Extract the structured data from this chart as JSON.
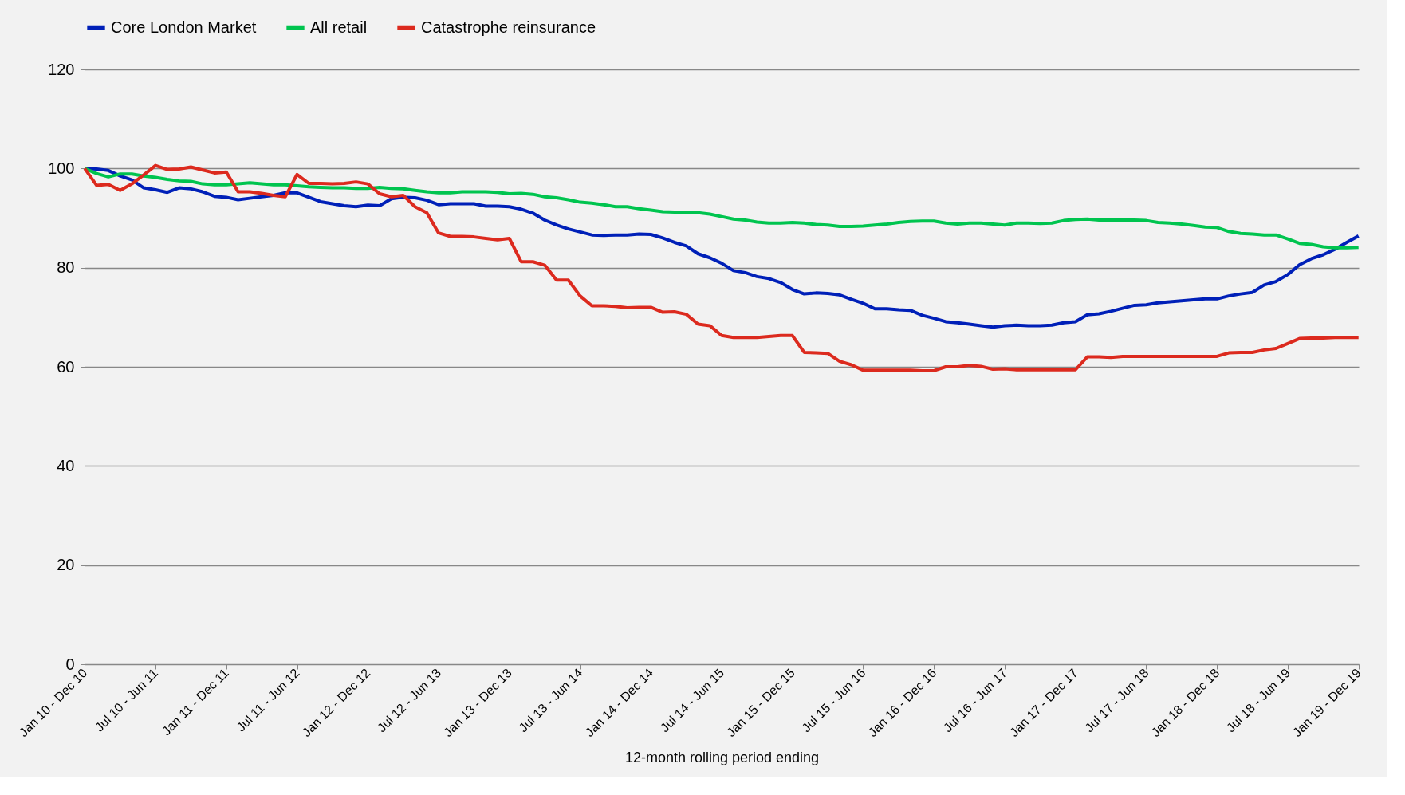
{
  "chart_data": {
    "type": "line",
    "categories": [
      "Jan 10 - Dec 10",
      null,
      null,
      null,
      null,
      null,
      "Jul 10 - Jun 11",
      null,
      null,
      null,
      null,
      null,
      "Jan 11 - Dec 11",
      null,
      null,
      null,
      null,
      null,
      "Jul 11 - Jun 12",
      null,
      null,
      null,
      null,
      null,
      "Jan 12 - Dec 12",
      null,
      null,
      null,
      null,
      null,
      "Jul 12 - Jun 13",
      null,
      null,
      null,
      null,
      null,
      "Jan 13 - Dec 13",
      null,
      null,
      null,
      null,
      null,
      "Jul 13 - Jun 14",
      null,
      null,
      null,
      null,
      null,
      "Jan 14 - Dec 14",
      null,
      null,
      null,
      null,
      null,
      "Jul 14 - Jun 15",
      null,
      null,
      null,
      null,
      null,
      "Jan 15 - Dec 15",
      null,
      null,
      null,
      null,
      null,
      "Jul 15 - Jun 16",
      null,
      null,
      null,
      null,
      null,
      "Jan 16 - Dec 16",
      null,
      null,
      null,
      null,
      null,
      "Jul 16 - Jun 17",
      null,
      null,
      null,
      null,
      null,
      "Jan 17 - Dec 17",
      null,
      null,
      null,
      null,
      null,
      "Jul 17 - Jun 18",
      null,
      null,
      null,
      null,
      null,
      "Jan 18 - Dec 18",
      null,
      null,
      null,
      null,
      null,
      "Jul 18 - Jun 19",
      null,
      null,
      null,
      null,
      null,
      "Jan 19 - Dec 19"
    ],
    "xlabel": "12-month rolling period ending",
    "series": [
      {
        "name": "Core London Market",
        "color": "#0020b8",
        "values": [
          100,
          99.9,
          99.6,
          98.5,
          97.7,
          96.1,
          95.7,
          95.2,
          96.1,
          95.9,
          95.3,
          94.4,
          94.2,
          93.7,
          94.0,
          94.3,
          94.6,
          95.1,
          95.1,
          94.2,
          93.3,
          92.9,
          92.5,
          92.3,
          92.6,
          92.5,
          93.9,
          94.2,
          94.1,
          93.6,
          92.7,
          92.9,
          92.9,
          92.9,
          92.4,
          92.4,
          92.3,
          91.8,
          91.0,
          89.6,
          88.6,
          87.8,
          87.2,
          86.6,
          86.5,
          86.6,
          86.6,
          86.8,
          86.7,
          86.0,
          85.1,
          84.4,
          82.8,
          82.0,
          80.9,
          79.4,
          79.0,
          78.2,
          77.8,
          77.0,
          75.6,
          74.7,
          74.9,
          74.8,
          74.5,
          73.6,
          72.8,
          71.7,
          71.7,
          71.5,
          71.4,
          70.4,
          69.8,
          69.1,
          68.9,
          68.6,
          68.3,
          68.0,
          68.3,
          68.4,
          68.3,
          68.3,
          68.4,
          68.9,
          69.1,
          70.5,
          70.7,
          71.2,
          71.8,
          72.4,
          72.5,
          72.9,
          73.1,
          73.3,
          73.5,
          73.7,
          73.7,
          74.3,
          74.7,
          75.0,
          76.5,
          77.2,
          78.6,
          80.6,
          81.8,
          82.6,
          83.7,
          85.1,
          86.4
        ]
      },
      {
        "name": "All retail",
        "color": "#00c44f",
        "values": [
          100,
          99.0,
          98.3,
          98.9,
          98.9,
          98.5,
          98.2,
          97.8,
          97.5,
          97.4,
          96.9,
          96.7,
          96.7,
          96.9,
          97.1,
          96.9,
          96.7,
          96.7,
          96.5,
          96.3,
          96.2,
          96.1,
          96.1,
          96.0,
          96.0,
          96.2,
          96.0,
          95.9,
          95.6,
          95.3,
          95.1,
          95.1,
          95.3,
          95.3,
          95.3,
          95.2,
          94.9,
          95.0,
          94.8,
          94.3,
          94.1,
          93.7,
          93.2,
          93.0,
          92.7,
          92.3,
          92.3,
          91.9,
          91.6,
          91.3,
          91.2,
          91.2,
          91.1,
          90.8,
          90.3,
          89.8,
          89.6,
          89.2,
          89.0,
          89.0,
          89.1,
          89.0,
          88.7,
          88.6,
          88.3,
          88.3,
          88.4,
          88.6,
          88.8,
          89.1,
          89.3,
          89.4,
          89.4,
          89.0,
          88.8,
          89.0,
          89.0,
          88.8,
          88.6,
          89.0,
          89.0,
          88.9,
          89.0,
          89.5,
          89.7,
          89.8,
          89.6,
          89.6,
          89.6,
          89.6,
          89.5,
          89.1,
          89.0,
          88.8,
          88.5,
          88.2,
          88.1,
          87.3,
          86.9,
          86.8,
          86.6,
          86.6,
          85.8,
          84.9,
          84.7,
          84.2,
          84.0,
          84.0,
          84.1
        ]
      },
      {
        "name": "Catastrophe reinsurance",
        "color": "#dc2a1e",
        "values": [
          100,
          96.6,
          96.8,
          95.6,
          96.9,
          98.7,
          100.6,
          99.8,
          99.9,
          100.3,
          99.7,
          99.1,
          99.3,
          95.3,
          95.3,
          95.0,
          94.6,
          94.3,
          98.8,
          97.0,
          97.0,
          96.9,
          97.0,
          97.3,
          96.9,
          94.9,
          94.3,
          94.6,
          92.3,
          91.1,
          87.0,
          86.3,
          86.3,
          86.2,
          85.9,
          85.6,
          85.9,
          81.2,
          81.2,
          80.5,
          77.5,
          77.5,
          74.3,
          72.3,
          72.3,
          72.2,
          71.9,
          72.0,
          72.0,
          71.0,
          71.1,
          70.6,
          68.6,
          68.3,
          66.3,
          65.9,
          65.9,
          65.9,
          66.1,
          66.3,
          66.3,
          62.9,
          62.8,
          62.7,
          61.1,
          60.4,
          59.3,
          59.3,
          59.3,
          59.3,
          59.3,
          59.2,
          59.2,
          60.0,
          60.0,
          60.3,
          60.1,
          59.5,
          59.6,
          59.4,
          59.4,
          59.4,
          59.4,
          59.4,
          59.4,
          62.0,
          62.0,
          61.9,
          62.1,
          62.1,
          62.1,
          62.1,
          62.1,
          62.1,
          62.1,
          62.1,
          62.1,
          62.8,
          62.9,
          62.9,
          63.4,
          63.7,
          64.7,
          65.7,
          65.8,
          65.8,
          65.9,
          65.9,
          65.9
        ]
      }
    ],
    "ylim": [
      0,
      120
    ],
    "yticks": [
      0,
      20,
      40,
      60,
      80,
      100,
      120
    ],
    "grid": "y",
    "legend": "top left",
    "marker": "none",
    "line_style": "solid"
  }
}
